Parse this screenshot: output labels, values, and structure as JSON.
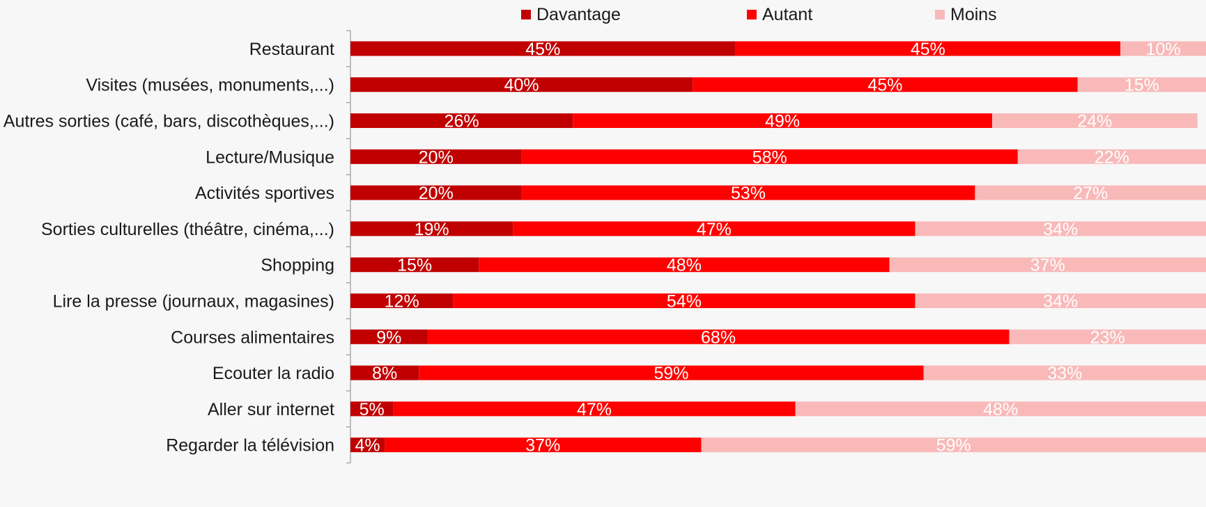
{
  "chart_data": {
    "type": "bar",
    "orientation": "horizontal",
    "stacked": true,
    "categories": [
      "Restaurant",
      "Visites (musées, monuments,...)",
      "Autres sorties (café, bars, discothèques,...)",
      "Lecture/Musique",
      "Activités sportives",
      "Sorties culturelles (théâtre, cinéma,...)",
      "Shopping",
      "Lire la presse (journaux, magasines)",
      "Courses alimentaires",
      "Ecouter la radio",
      "Aller sur internet",
      "Regarder la télévision"
    ],
    "series": [
      {
        "name": "Davantage",
        "color": "#c00000",
        "values": [
          45,
          40,
          26,
          20,
          20,
          19,
          15,
          12,
          9,
          8,
          5,
          4
        ]
      },
      {
        "name": "Autant",
        "color": "#ff0000",
        "values": [
          45,
          45,
          49,
          58,
          53,
          47,
          48,
          54,
          68,
          59,
          47,
          37
        ]
      },
      {
        "name": "Moins",
        "color": "#f9b9b9",
        "values": [
          10,
          15,
          24,
          22,
          27,
          34,
          37,
          34,
          23,
          33,
          48,
          59
        ]
      }
    ],
    "value_suffix": "%",
    "xlim": [
      0,
      100
    ],
    "legend_position": "top",
    "grid": false
  }
}
